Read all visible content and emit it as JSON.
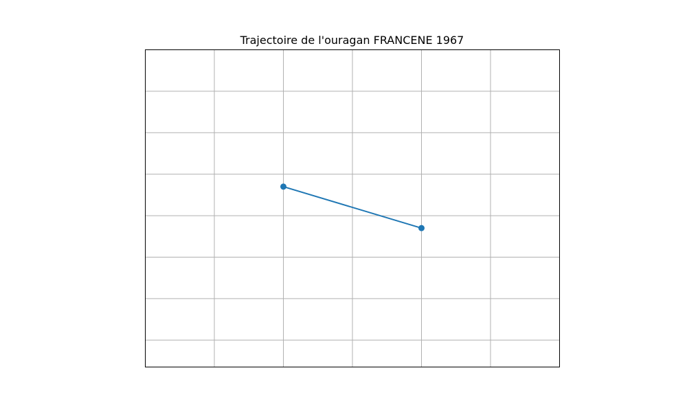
{
  "chart_data": {
    "type": "line",
    "title": "Trajectoire de l'ouragan FRANCENE 1967",
    "xlabel": "",
    "ylabel": "",
    "grid": true,
    "axis_ticks_visible": false,
    "x_grid_lines": 6,
    "y_grid_lines": 8,
    "series": [
      {
        "color": "#1f77b4",
        "marker": "circle",
        "points": [
          {
            "x": 2,
            "y": 4.35
          },
          {
            "x": 4,
            "y": 3.35
          }
        ]
      }
    ],
    "xlim": [
      0,
      6
    ],
    "ylim": [
      0,
      7.65
    ]
  }
}
